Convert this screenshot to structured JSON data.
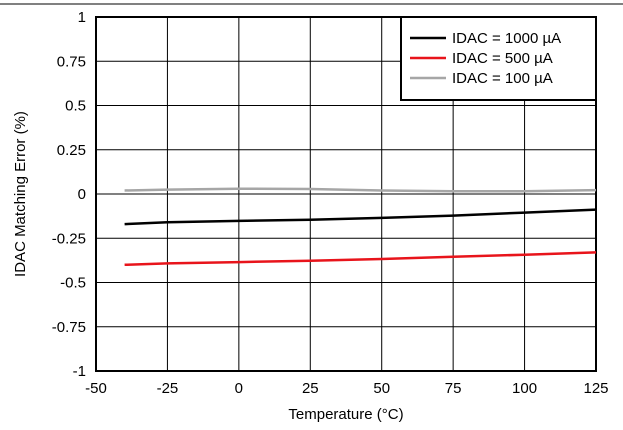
{
  "chart_data": {
    "type": "line",
    "xlabel": "Temperature (°C)",
    "ylabel": "IDAC Matching Error (%)",
    "xlim": [
      -50,
      125
    ],
    "ylim": [
      -1,
      1
    ],
    "x_ticks": [
      -50,
      -25,
      0,
      25,
      50,
      75,
      100,
      125
    ],
    "y_ticks": [
      -1,
      -0.75,
      -0.5,
      -0.25,
      0,
      0.25,
      0.5,
      0.75,
      1
    ],
    "x_tick_labels": [
      "-50",
      "-25",
      "0",
      "25",
      "50",
      "75",
      "100",
      "125"
    ],
    "y_tick_labels": [
      "-1",
      "-0.75",
      "-0.5",
      "-0.25",
      "0",
      "0.25",
      "0.5",
      "0.75",
      "1"
    ],
    "grid": true,
    "legend_position": "top-right",
    "series": [
      {
        "name": "IDAC = 1000 µA",
        "color": "#000000",
        "x": [
          -40,
          -25,
          0,
          25,
          50,
          75,
          100,
          125
        ],
        "y": [
          -0.17,
          -0.16,
          -0.152,
          -0.145,
          -0.135,
          -0.122,
          -0.105,
          -0.088
        ]
      },
      {
        "name": "IDAC = 500 µA",
        "color": "#e8141b",
        "x": [
          -40,
          -25,
          0,
          25,
          50,
          75,
          100,
          125
        ],
        "y": [
          -0.4,
          -0.392,
          -0.385,
          -0.377,
          -0.367,
          -0.355,
          -0.343,
          -0.33
        ]
      },
      {
        "name": "IDAC = 100 µA",
        "color": "#a6a6a6",
        "x": [
          -40,
          -25,
          0,
          25,
          50,
          75,
          100,
          125
        ],
        "y": [
          0.02,
          0.025,
          0.03,
          0.028,
          0.02,
          0.015,
          0.016,
          0.022
        ]
      }
    ]
  }
}
